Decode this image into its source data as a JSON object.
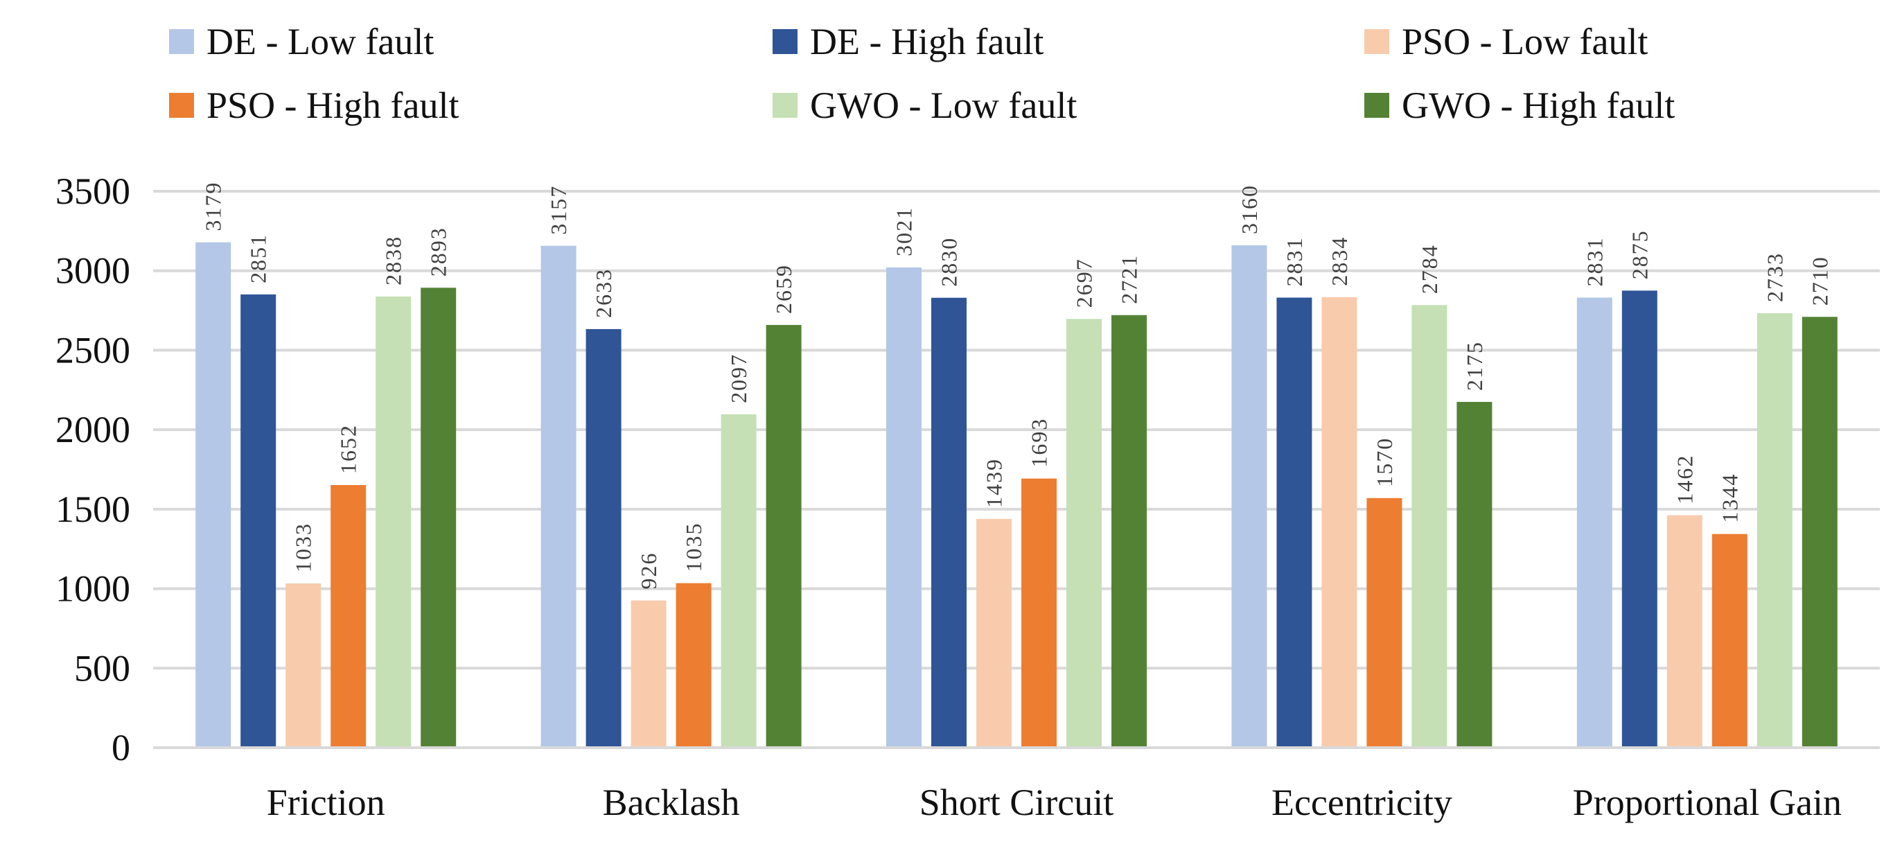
{
  "chart_data": {
    "type": "bar",
    "title": "",
    "xlabel": "",
    "ylabel": "",
    "ylim": [
      0,
      3500
    ],
    "yticks": [
      0,
      500,
      1000,
      1500,
      2000,
      2500,
      3000,
      3500
    ],
    "grid": true,
    "legend_position": "top",
    "categories": [
      "Friction",
      "Backlash",
      "Short Circuit",
      "Eccentricity",
      "Proportional Gain"
    ],
    "series": [
      {
        "name": "DE - Low fault",
        "color": "#B4C7E7",
        "values": [
          3179,
          3157,
          3021,
          3160,
          2831
        ]
      },
      {
        "name": "DE - High fault",
        "color": "#2F5597",
        "values": [
          2851,
          2633,
          2830,
          2831,
          2875
        ]
      },
      {
        "name": "PSO - Low fault",
        "color": "#F8CBAD",
        "values": [
          1033,
          926,
          1439,
          2834,
          1462
        ]
      },
      {
        "name": "PSO - High fault",
        "color": "#ED7D31",
        "values": [
          1652,
          1035,
          1693,
          1570,
          1344
        ]
      },
      {
        "name": "GWO - Low fault",
        "color": "#C5E0B4",
        "values": [
          2838,
          2097,
          2697,
          2784,
          2733
        ]
      },
      {
        "name": "GWO - High fault",
        "color": "#548235",
        "values": [
          2893,
          2659,
          2721,
          2175,
          2710
        ]
      }
    ]
  }
}
